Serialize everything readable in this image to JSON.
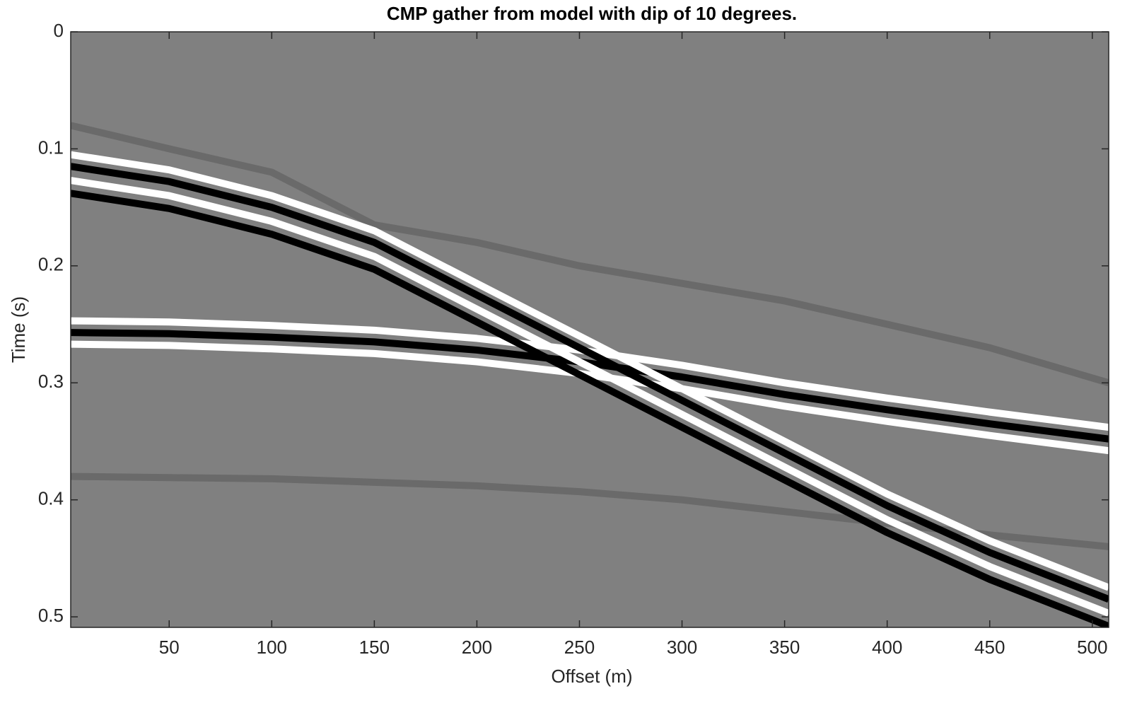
{
  "chart_data": {
    "type": "line",
    "title": "CMP gather from model with dip of 10 degrees.",
    "x_label": "Offset (m)",
    "y_label": "Time (s)",
    "xlim": [
      2,
      508
    ],
    "ylim": [
      0,
      0.509
    ],
    "y_reversed": true,
    "xticks": [
      50,
      100,
      150,
      200,
      250,
      300,
      350,
      400,
      450,
      500
    ],
    "yticks": [
      0,
      0.1,
      0.2,
      0.3,
      0.4,
      0.5
    ],
    "background": "#808080",
    "x": [
      2,
      50,
      100,
      150,
      200,
      250,
      300,
      350,
      400,
      450,
      508
    ],
    "series": [
      {
        "color": "#6a6a6a",
        "values": [
          0.08,
          0.1,
          0.12,
          0.165,
          0.18,
          0.2,
          0.215,
          0.23,
          0.25,
          0.27,
          0.3
        ]
      },
      {
        "color": "#6a6a6a",
        "values": [
          0.38,
          0.381,
          0.382,
          0.385,
          0.388,
          0.393,
          0.4,
          0.41,
          0.42,
          0.43,
          0.44
        ]
      },
      {
        "color": "#ffffff",
        "values": [
          0.247,
          0.248,
          0.251,
          0.255,
          0.262,
          0.272,
          0.285,
          0.3,
          0.313,
          0.325,
          0.338
        ]
      },
      {
        "color": "#000000",
        "values": [
          0.257,
          0.258,
          0.261,
          0.265,
          0.272,
          0.282,
          0.295,
          0.31,
          0.323,
          0.335,
          0.348
        ]
      },
      {
        "color": "#ffffff",
        "values": [
          0.267,
          0.268,
          0.271,
          0.275,
          0.282,
          0.292,
          0.305,
          0.32,
          0.333,
          0.345,
          0.358
        ]
      },
      {
        "color": "#ffffff",
        "values": [
          0.105,
          0.118,
          0.14,
          0.17,
          0.215,
          0.26,
          0.305,
          0.35,
          0.395,
          0.435,
          0.475
        ]
      },
      {
        "color": "#000000",
        "values": [
          0.115,
          0.128,
          0.15,
          0.18,
          0.225,
          0.27,
          0.315,
          0.36,
          0.405,
          0.445,
          0.485
        ]
      },
      {
        "color": "#ffffff",
        "values": [
          0.127,
          0.14,
          0.162,
          0.192,
          0.237,
          0.282,
          0.327,
          0.372,
          0.417,
          0.457,
          0.497
        ]
      },
      {
        "color": "#000000",
        "values": [
          0.138,
          0.151,
          0.173,
          0.203,
          0.248,
          0.293,
          0.338,
          0.383,
          0.428,
          0.468,
          0.508
        ]
      }
    ]
  }
}
